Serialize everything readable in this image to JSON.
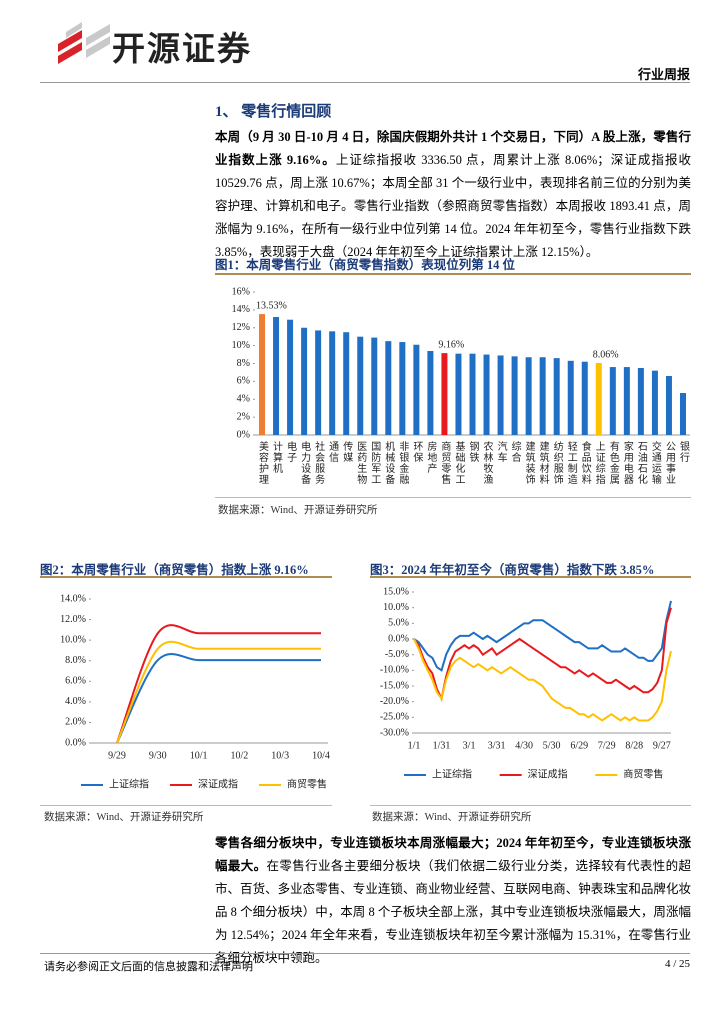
{
  "header": {
    "logo": "开源证券",
    "tag": "行业周报"
  },
  "section_title": "1、 零售行情回顾",
  "paragraphs": [
    {
      "bold": "本周（9 月 30 日-10 月 4 日，除国庆假期外共计 1 个交易日，下同）A 股上涨，零售行业指数上涨 9.16%。",
      "text": "上证综指报收 3336.50 点，周累计上涨 8.06%；深证成指报收 10529.76 点，周上涨 10.67%；本周全部 31 个一级行业中，表现排名前三位的分别为美容护理、计算机和电子。零售行业指数（参照商贸零售指数）本周报收 1893.41 点，周涨幅为 9.16%，在所有一级行业中位列第 14 位。2024 年年初至今，零售行业指数下跌 3.85%，表现弱于大盘（2024 年年初至今上证综指累计上涨 12.15%）。"
    },
    {
      "bold": "零售各细分板块中，专业连锁板块本周涨幅最大；2024 年年初至今，专业连锁板块涨幅最大。",
      "text": "在零售行业各主要细分板块（我们依据二级行业分类，选择较有代表性的超市、百货、多业态零售、专业连锁、商业物业经营、互联网电商、钟表珠宝和品牌化妆品 8 个细分板块）中，本周 8 个子板块全部上涨，其中专业连锁板块涨幅最大，周涨幅为 12.54%；2024 年全年来看，专业连锁板块年初至今累计涨幅为 15.31%，在零售行业各细分板块中领跑。"
    }
  ],
  "chart_data": [
    {
      "type": "bar",
      "title": "图1：本周零售行业（商贸零售指数）表现位列第 14 位",
      "categories": [
        "美容护理",
        "计算机",
        "电子",
        "电力设备",
        "社会服务",
        "通信",
        "传媒",
        "医药生物",
        "国防军工",
        "机械设备",
        "非银金融",
        "环保",
        "房地产",
        "商贸零售",
        "基础化工",
        "钢铁",
        "农林牧渔",
        "汽车",
        "综合",
        "建筑装饰",
        "建筑材料",
        "纺织服饰",
        "轻工制造",
        "食品饮料",
        "上证综指",
        "有色金属",
        "家用电器",
        "石油石化",
        "交通运输",
        "公用事业",
        "银行"
      ],
      "values": [
        13.53,
        13.2,
        12.9,
        12.0,
        11.7,
        11.6,
        11.5,
        11.0,
        10.9,
        10.5,
        10.4,
        10.1,
        9.4,
        9.16,
        9.1,
        9.1,
        9.0,
        8.9,
        8.8,
        8.7,
        8.7,
        8.6,
        8.3,
        8.2,
        8.06,
        7.6,
        7.6,
        7.5,
        7.2,
        6.6,
        4.7
      ],
      "value_labels": [
        "13.53%",
        null,
        null,
        null,
        null,
        null,
        null,
        null,
        null,
        null,
        null,
        null,
        null,
        "9.16%",
        null,
        null,
        null,
        null,
        null,
        null,
        null,
        null,
        null,
        null,
        "8.06%",
        null,
        null,
        null,
        null,
        null,
        null
      ],
      "colors": [
        "#ed7d31",
        "#1f6fc5",
        "#1f6fc5",
        "#1f6fc5",
        "#1f6fc5",
        "#1f6fc5",
        "#1f6fc5",
        "#1f6fc5",
        "#1f6fc5",
        "#1f6fc5",
        "#1f6fc5",
        "#1f6fc5",
        "#1f6fc5",
        "#e8191f",
        "#1f6fc5",
        "#1f6fc5",
        "#1f6fc5",
        "#1f6fc5",
        "#1f6fc5",
        "#1f6fc5",
        "#1f6fc5",
        "#1f6fc5",
        "#1f6fc5",
        "#1f6fc5",
        "#ffc000",
        "#1f6fc5",
        "#1f6fc5",
        "#1f6fc5",
        "#1f6fc5",
        "#1f6fc5",
        "#1f6fc5"
      ],
      "ylim": [
        0,
        16
      ],
      "yticks": [
        {
          "value": 0,
          "label": "0%"
        },
        {
          "value": 2,
          "label": "2%"
        },
        {
          "value": 4,
          "label": "4%"
        },
        {
          "value": 6,
          "label": "6%"
        },
        {
          "value": 8,
          "label": "8%"
        },
        {
          "value": 10,
          "label": "10%"
        },
        {
          "value": 12,
          "label": "12%"
        },
        {
          "value": 14,
          "label": "14%"
        },
        {
          "value": 16,
          "label": "16%"
        }
      ],
      "source": "数据来源：Wind、开源证券研究所"
    },
    {
      "type": "line",
      "title": "图2：本周零售行业（商贸零售）指数上涨 9.16%",
      "smooth": true,
      "categories": [
        "9/29",
        "9/30",
        "10/1",
        "10/2",
        "10/3",
        "10/4"
      ],
      "series": [
        {
          "name": "上证综指",
          "color": "#1f6fc5",
          "values": [
            0,
            8.06,
            8.06,
            8.06,
            8.06,
            8.06
          ]
        },
        {
          "name": "深证成指",
          "color": "#e8191f",
          "values": [
            0,
            10.67,
            10.67,
            10.67,
            10.67,
            10.67
          ]
        },
        {
          "name": "商贸零售",
          "color": "#ffc000",
          "values": [
            0,
            9.16,
            9.16,
            9.16,
            9.16,
            9.16
          ]
        }
      ],
      "ylim": [
        0,
        14
      ],
      "yticks": [
        {
          "value": 0,
          "label": "0.0%"
        },
        {
          "value": 2,
          "label": "2.0%"
        },
        {
          "value": 4,
          "label": "4.0%"
        },
        {
          "value": 6,
          "label": "6.0%"
        },
        {
          "value": 8,
          "label": "8.0%"
        },
        {
          "value": 10,
          "label": "10.0%"
        },
        {
          "value": 12,
          "label": "12.0%"
        },
        {
          "value": 14,
          "label": "14.0%"
        }
      ],
      "legend": "bottom",
      "source": "数据来源：Wind、开源证券研究所"
    },
    {
      "type": "line",
      "title": "图3：2024 年年初至今（商贸零售）指数下跌 3.85%",
      "smooth": false,
      "categories": [
        "1/1",
        null,
        null,
        null,
        null,
        null,
        "1/31",
        null,
        null,
        null,
        null,
        null,
        "3/1",
        null,
        null,
        null,
        null,
        null,
        "3/31",
        null,
        null,
        null,
        null,
        null,
        "4/30",
        null,
        null,
        null,
        null,
        null,
        "5/30",
        null,
        null,
        null,
        null,
        null,
        "6/29",
        null,
        null,
        null,
        null,
        null,
        "7/29",
        null,
        null,
        null,
        null,
        null,
        "8/28",
        null,
        null,
        null,
        null,
        null,
        "9/27",
        null,
        null
      ],
      "series": [
        {
          "name": "上证综指",
          "color": "#1f6fc5",
          "values": [
            0,
            -1,
            -3,
            -5,
            -6,
            -9,
            -10,
            -5,
            -2,
            0,
            1,
            1,
            1,
            2,
            1,
            0,
            1,
            0,
            -1,
            0,
            1,
            2,
            3,
            4,
            5,
            5,
            6,
            6,
            6,
            5,
            4,
            3,
            2,
            1,
            0,
            -1,
            -1,
            -2,
            -3,
            -3,
            -3,
            -2,
            -3,
            -4,
            -4,
            -4,
            -3,
            -4,
            -5,
            -6,
            -6,
            -7,
            -7,
            -5,
            -3,
            6,
            12.15
          ]
        },
        {
          "name": "深证成指",
          "color": "#e8191f",
          "values": [
            0,
            -2,
            -6,
            -9,
            -11,
            -16,
            -19,
            -12,
            -7,
            -4,
            -3,
            -2,
            -3,
            -2,
            -3,
            -5,
            -4,
            -3,
            -5,
            -4,
            -3,
            -2,
            -1,
            0,
            -1,
            -2,
            -3,
            -4,
            -5,
            -6,
            -7,
            -8,
            -9,
            -9,
            -10,
            -11,
            -10,
            -11,
            -12,
            -11,
            -12,
            -13,
            -14,
            -14,
            -13,
            -14,
            -15,
            -16,
            -15,
            -16,
            -17,
            -17,
            -16,
            -14,
            -10,
            5,
            10
          ]
        },
        {
          "name": "商贸零售",
          "color": "#ffc000",
          "values": [
            0,
            -3,
            -7,
            -10,
            -13,
            -17,
            -19,
            -13,
            -9,
            -7,
            -6,
            -7,
            -8,
            -9,
            -8,
            -9,
            -10,
            -9,
            -10,
            -11,
            -10,
            -9,
            -10,
            -11,
            -12,
            -13,
            -13,
            -14,
            -15,
            -17,
            -19,
            -20,
            -21,
            -22,
            -22,
            -23,
            -24,
            -24,
            -25,
            -24,
            -25,
            -26,
            -25,
            -24,
            -25,
            -26,
            -25,
            -26,
            -25,
            -26,
            -26,
            -26,
            -25,
            -23,
            -20,
            -10,
            -3.85
          ]
        }
      ],
      "ylim": [
        -30,
        15
      ],
      "yticks": [
        {
          "value": -30,
          "label": "-30.0%"
        },
        {
          "value": -25,
          "label": "-25.0%"
        },
        {
          "value": -20,
          "label": "-20.0%"
        },
        {
          "value": -15,
          "label": "-15.0%"
        },
        {
          "value": -10,
          "label": "-10.0%"
        },
        {
          "value": -5,
          "label": "-5.0%"
        },
        {
          "value": 0,
          "label": "0.0%"
        },
        {
          "value": 5,
          "label": "5.0%"
        },
        {
          "value": 10,
          "label": "10.0%"
        },
        {
          "value": 15,
          "label": "15.0%"
        }
      ],
      "legend": "bottom",
      "source": "数据来源：Wind、开源证券研究所"
    }
  ],
  "footer": {
    "disclaimer": "请务必参阅正文后面的信息披露和法律声明",
    "page": "4 / 25"
  }
}
